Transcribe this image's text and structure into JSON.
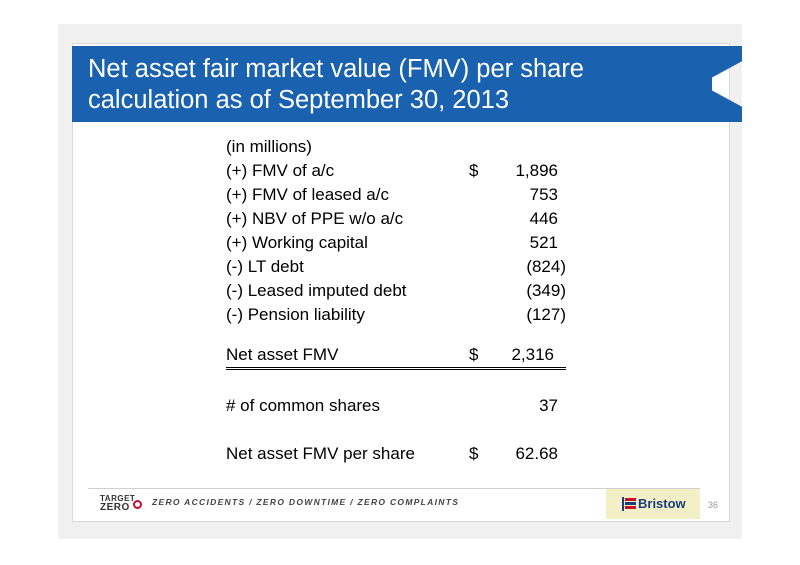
{
  "slide": {
    "title_line1": "Net asset fair market value (FMV) per share",
    "title_line2": "calculation as of September 30, 2013",
    "page_number": "36"
  },
  "table": {
    "units": "(in millions)",
    "rows": [
      {
        "label": "(+) FMV of a/c",
        "dollar": "$",
        "value": "1,896"
      },
      {
        "label": "(+) FMV of leased a/c",
        "dollar": "",
        "value": "753"
      },
      {
        "label": "(+) NBV of PPE w/o a/c",
        "dollar": "",
        "value": "446"
      },
      {
        "label": "(+) Working capital",
        "dollar": "",
        "value": "521"
      },
      {
        "label": "(-) LT debt",
        "dollar": "",
        "value": "(824)"
      },
      {
        "label": "(-) Leased imputed debt",
        "dollar": "",
        "value": "(349)"
      },
      {
        "label": "(-) Pension liability",
        "dollar": "",
        "value": "(127)"
      }
    ],
    "total": {
      "label": "Net asset FMV",
      "dollar": "$",
      "value": "2,316"
    },
    "shares": {
      "label": "# of common shares",
      "value": "37"
    },
    "per_share": {
      "label": "Net asset FMV per share",
      "dollar": "$",
      "value": "62.68"
    }
  },
  "footer": {
    "target_line1": "TARGET",
    "target_line2": "ZERO",
    "slogan": "ZERO ACCIDENTS / ZERO DOWNTIME / ZERO COMPLAINTS",
    "logo_text": "Bristow",
    "logo_icon": "bristow-flag-icon",
    "target_icon": "target-icon"
  },
  "colors": {
    "title_bar": "#1a62b0",
    "logo_bg": "#f3f0c8",
    "logo_text": "#1a3d7c",
    "target_red": "#c8102e"
  }
}
